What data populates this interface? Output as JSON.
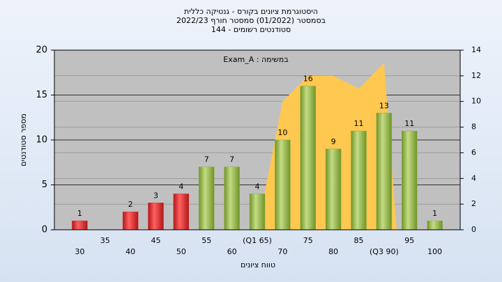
{
  "chart_data": {
    "type": "bar",
    "title": [
      "היסטוגרמת ציונים בקורס - גנטיקה כללית",
      "בסמסטר (01/2022)  סמסטר חורף 2022/23",
      "סטודנטים רשומים - 144"
    ],
    "annotation": "Exam_A : במשימה",
    "xlabel": "טווח ציונים",
    "ylabel": "מספר סטודנטים",
    "categories": [
      "30",
      "35",
      "40",
      "45",
      "50",
      "55",
      "60",
      "(Q1 65)",
      "70",
      "75",
      "80",
      "85",
      "(Q3 90)",
      "95",
      "100"
    ],
    "series": [
      {
        "color": "#e03030",
        "values": [
          1,
          null,
          2,
          3,
          4,
          null,
          null,
          null,
          null,
          null,
          null,
          null,
          null,
          null,
          null
        ]
      },
      {
        "color": "#8cb040",
        "values": [
          null,
          null,
          null,
          null,
          null,
          7,
          7,
          4,
          10,
          16,
          9,
          11,
          13,
          11,
          1
        ]
      },
      {
        "color": "#ffc850",
        "axis": "y2",
        "values": [
          null,
          null,
          null,
          null,
          null,
          null,
          null,
          0,
          10,
          12,
          12,
          11,
          13,
          null,
          null
        ]
      }
    ],
    "ylim": [
      0,
      20
    ],
    "yticks": [
      0,
      5,
      10,
      15,
      20
    ],
    "y2lim": [
      0,
      14
    ],
    "y2ticks": [
      0,
      2,
      4,
      6,
      8,
      10,
      12,
      14
    ],
    "grid": true
  }
}
